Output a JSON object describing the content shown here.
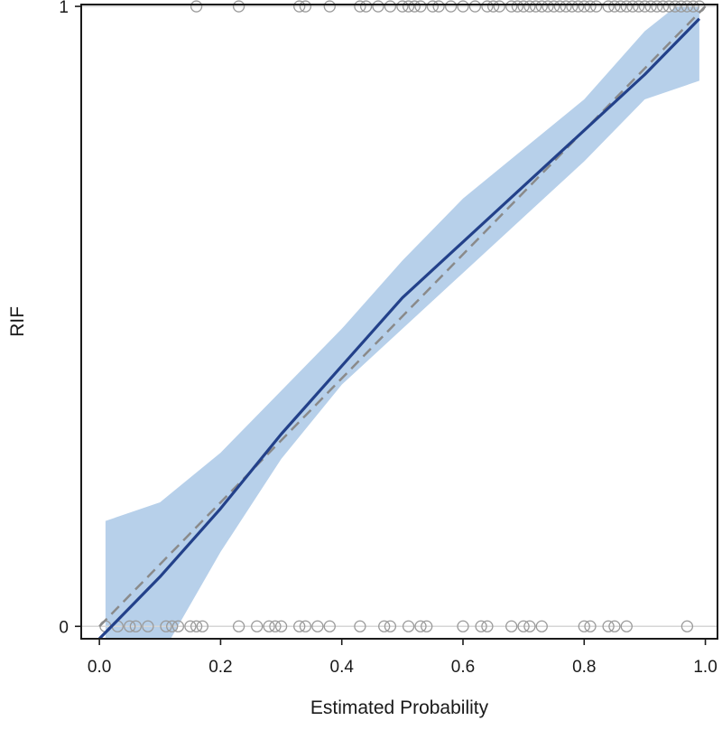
{
  "chart_data": {
    "type": "line",
    "xlabel": "Estimated Probability",
    "ylabel": "RIF",
    "xlim": [
      -0.03,
      1.02
    ],
    "ylim": [
      -0.02,
      1.003
    ],
    "x_ticks": [
      "0.0",
      "0.2",
      "0.4",
      "0.6",
      "0.8",
      "1.0"
    ],
    "y_ticks": [
      "0",
      "1"
    ],
    "grid": false,
    "colors": {
      "fit_line": "#23418a",
      "confidence_band": "#b7d0ea",
      "reference_line": "#8a8a8a",
      "observation_markers": "#9a9a9a",
      "baseline_rules": "#d6d6d6"
    },
    "series": [
      {
        "kind": "confidence_band",
        "x": [
          0.01,
          0.1,
          0.2,
          0.3,
          0.4,
          0.5,
          0.6,
          0.7,
          0.8,
          0.9,
          0.99
        ],
        "lower": [
          -0.05,
          -0.05,
          0.12,
          0.27,
          0.39,
          0.48,
          0.57,
          0.66,
          0.75,
          0.85,
          0.88
        ],
        "upper": [
          0.17,
          0.2,
          0.28,
          0.38,
          0.48,
          0.59,
          0.69,
          0.77,
          0.85,
          0.96,
          1.03
        ]
      },
      {
        "kind": "fitted_curve",
        "x": [
          0.0,
          0.02,
          0.1,
          0.2,
          0.3,
          0.4,
          0.5,
          0.6,
          0.7,
          0.8,
          0.9,
          0.99
        ],
        "y": [
          -0.02,
          0.0,
          0.08,
          0.19,
          0.31,
          0.42,
          0.53,
          0.62,
          0.71,
          0.8,
          0.89,
          0.98
        ]
      },
      {
        "kind": "reference_diagonal",
        "x": [
          0.0,
          1.0
        ],
        "y": [
          0.0,
          1.0
        ]
      },
      {
        "kind": "observations",
        "y_value": 1,
        "x": [
          0.16,
          0.23,
          0.33,
          0.34,
          0.38,
          0.43,
          0.44,
          0.46,
          0.48,
          0.5,
          0.51,
          0.52,
          0.53,
          0.55,
          0.56,
          0.58,
          0.6,
          0.62,
          0.64,
          0.65,
          0.66,
          0.68,
          0.69,
          0.7,
          0.71,
          0.72,
          0.73,
          0.74,
          0.75,
          0.76,
          0.77,
          0.78,
          0.79,
          0.8,
          0.81,
          0.82,
          0.84,
          0.85,
          0.86,
          0.87,
          0.88,
          0.89,
          0.9,
          0.91,
          0.92,
          0.93,
          0.94,
          0.95,
          0.96,
          0.97,
          0.98,
          0.99
        ]
      },
      {
        "kind": "observations",
        "y_value": 0,
        "x": [
          0.01,
          0.03,
          0.05,
          0.06,
          0.08,
          0.11,
          0.12,
          0.13,
          0.15,
          0.16,
          0.17,
          0.23,
          0.26,
          0.28,
          0.29,
          0.3,
          0.33,
          0.34,
          0.36,
          0.38,
          0.43,
          0.47,
          0.48,
          0.51,
          0.53,
          0.54,
          0.6,
          0.63,
          0.64,
          0.68,
          0.7,
          0.71,
          0.73,
          0.8,
          0.81,
          0.84,
          0.85,
          0.87,
          0.97
        ]
      }
    ]
  }
}
